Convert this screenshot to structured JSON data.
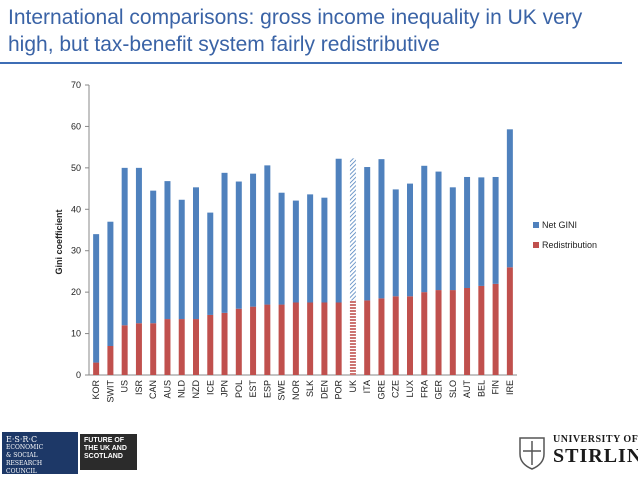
{
  "slide": {
    "title": "International comparisons: gross income inequality in UK very high, but tax-benefit system fairly redistributive"
  },
  "logos": {
    "esrc": [
      "E·S·R·C",
      "ECONOMIC",
      "& SOCIAL",
      "RESEARCH",
      "COUNCIL"
    ],
    "future": [
      "FUTURE OF",
      "THE UK AND",
      "SCOTLAND"
    ],
    "stirling": [
      "UNIVERSITY OF",
      "STIRLING"
    ]
  },
  "chart_data": {
    "type": "bar",
    "stacked": true,
    "title": "",
    "xlabel": "",
    "ylabel": "Gini coefficient",
    "ylim": [
      0,
      70
    ],
    "yticks": [
      0,
      10,
      20,
      30,
      40,
      50,
      60,
      70
    ],
    "grid": false,
    "legend_position": "right",
    "highlight_category": "UK",
    "colors": {
      "Net GINI": "#4f81bd",
      "Redistribution": "#c0504d"
    },
    "categories": [
      "KOR",
      "SWIT",
      "US",
      "ISR",
      "CAN",
      "AUS",
      "NLD",
      "NZD",
      "ICE",
      "JPN",
      "POL",
      "EST",
      "ESP",
      "SWE",
      "NOR",
      "SLK",
      "DEN",
      "POR",
      "UK",
      "ITA",
      "GRE",
      "CZE",
      "LUX",
      "FRA",
      "GER",
      "SLO",
      "AUT",
      "BEL",
      "FIN",
      "IRE"
    ],
    "series": [
      {
        "name": "Redistribution",
        "values": [
          3,
          7,
          12,
          12.5,
          12.5,
          13.5,
          13.5,
          13.5,
          14.5,
          15,
          16,
          16.5,
          17,
          17,
          17.5,
          17.5,
          17.5,
          17.5,
          18,
          18,
          18.5,
          19,
          19,
          20,
          20.5,
          20.5,
          21,
          21.5,
          22,
          26
        ]
      },
      {
        "name": "Net GINI",
        "values": [
          31,
          30,
          38,
          37.5,
          32,
          33.3,
          28.8,
          31.8,
          24.7,
          33.8,
          30.7,
          32.1,
          33.6,
          27,
          24.6,
          26.1,
          25.3,
          34.7,
          34.3,
          32.2,
          33.6,
          25.8,
          27.2,
          30.5,
          28.6,
          24.8,
          26.8,
          26.2,
          25.8,
          33.3
        ]
      }
    ]
  }
}
